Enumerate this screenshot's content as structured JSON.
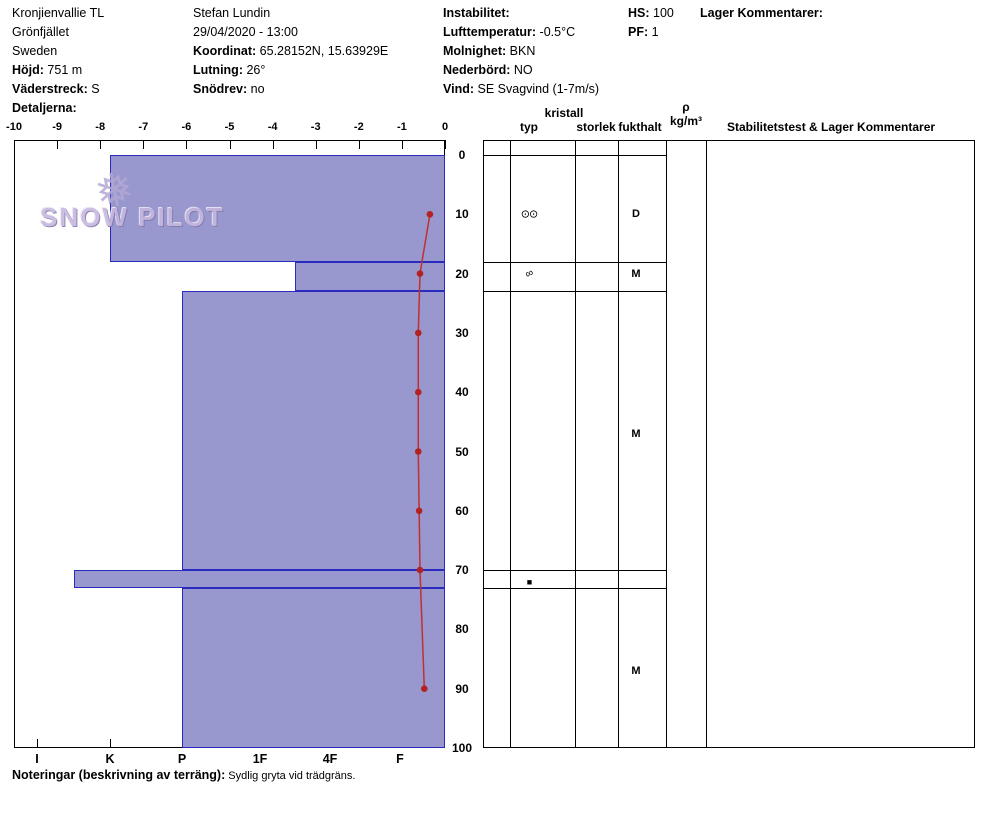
{
  "watermark": {
    "text": "SNOW PILOT",
    "icon": "snowflake"
  },
  "info": {
    "col1": [
      {
        "label": "",
        "value": "Kronjienvallie TL"
      },
      {
        "label": "",
        "value": "Grönfjället"
      },
      {
        "label": "",
        "value": "Sweden"
      },
      {
        "label": "Höjd:",
        "value": " 751 m"
      },
      {
        "label": "Väderstreck:",
        "value": " S"
      },
      {
        "label": "Detaljerna:",
        "value": ""
      }
    ],
    "col2": [
      {
        "label": "",
        "value": "Stefan Lundin"
      },
      {
        "label": "",
        "value": "29/04/2020 - 13:00"
      },
      {
        "label": "Koordinat:",
        "value": " 65.28152N, 15.63929E"
      },
      {
        "label": "Lutning:",
        "value": " 26°"
      },
      {
        "label": "Snödrev:",
        "value": " no"
      }
    ],
    "col3": [
      {
        "label": "Instabilitet:",
        "value": ""
      },
      {
        "label": "Lufttemperatur:",
        "value": " -0.5°C"
      },
      {
        "label": "Molnighet:",
        "value": " BKN"
      },
      {
        "label": "Nederbörd:",
        "value": " NO"
      },
      {
        "label": "Vind:",
        "value": " SE Svagvind (1-7m/s)"
      }
    ],
    "col4": [
      {
        "label": "HS:",
        "value": " 100"
      },
      {
        "label": "PF:",
        "value": " 1"
      }
    ],
    "col5": [
      {
        "label": "Lager Kommentarer:",
        "value": ""
      }
    ]
  },
  "chart_data": {
    "type": "snow-profile",
    "title": "",
    "temp_axis": {
      "label_values": [
        -10,
        -9,
        -8,
        -7,
        -6,
        -5,
        -4,
        -3,
        -2,
        -1,
        0
      ],
      "min": -10,
      "max": 0,
      "unit": "°C",
      "position": "top"
    },
    "hardness_axis": {
      "labels": [
        "I",
        "K",
        "P",
        "1F",
        "4F",
        "F"
      ],
      "position": "bottom"
    },
    "depth_axis": {
      "labels": [
        0,
        10,
        20,
        30,
        40,
        50,
        60,
        70,
        80,
        90,
        100
      ],
      "min": 0,
      "max": 100,
      "unit": "cm",
      "position": "right"
    },
    "layers": [
      {
        "top_cm": 0,
        "bottom_cm": 18,
        "hardness": "K"
      },
      {
        "top_cm": 18,
        "bottom_cm": 23,
        "hardness": "1F-"
      },
      {
        "top_cm": 23,
        "bottom_cm": 70,
        "hardness": "P"
      },
      {
        "top_cm": 70,
        "bottom_cm": 73,
        "hardness": "K+"
      },
      {
        "top_cm": 73,
        "bottom_cm": 100,
        "hardness": "P"
      }
    ],
    "temperature_profile": [
      {
        "depth_cm": 10,
        "temp_c": -0.35
      },
      {
        "depth_cm": 20,
        "temp_c": -0.58
      },
      {
        "depth_cm": 30,
        "temp_c": -0.62
      },
      {
        "depth_cm": 40,
        "temp_c": -0.62
      },
      {
        "depth_cm": 50,
        "temp_c": -0.62
      },
      {
        "depth_cm": 60,
        "temp_c": -0.6
      },
      {
        "depth_cm": 70,
        "temp_c": -0.58
      },
      {
        "depth_cm": 90,
        "temp_c": -0.48
      }
    ],
    "colors": {
      "layer_fill": "#9898ce",
      "layer_border": "#2a2ac0",
      "temp_line": "#c03030",
      "temp_marker": "#b22222"
    }
  },
  "layer_table": {
    "headers": {
      "kristall": "kristall",
      "typ": "typ",
      "storlek": "storlek",
      "fukthalt": "fukthalt",
      "rho": "ρ",
      "rho_unit": "kg/m³",
      "comments": "Stabilitetstest & Lager Kommentarer"
    },
    "boundaries_cm": [
      0,
      18,
      23,
      70,
      73
    ],
    "cells": [
      {
        "depth_cm": 10,
        "col": "typ",
        "text": "⊙⊙"
      },
      {
        "depth_cm": 10,
        "col": "fukthalt",
        "text": "D"
      },
      {
        "depth_cm": 20,
        "col": "typ",
        "text": "∞"
      },
      {
        "depth_cm": 20,
        "col": "fukthalt",
        "text": "M"
      },
      {
        "depth_cm": 47,
        "col": "fukthalt",
        "text": "M"
      },
      {
        "depth_cm": 72,
        "col": "typ",
        "text": "■"
      },
      {
        "depth_cm": 87,
        "col": "fukthalt",
        "text": "M"
      }
    ]
  },
  "footer": {
    "label": "Noteringar (beskrivning av terräng):",
    "value": " Sydlig gryta vid trädgräns."
  }
}
